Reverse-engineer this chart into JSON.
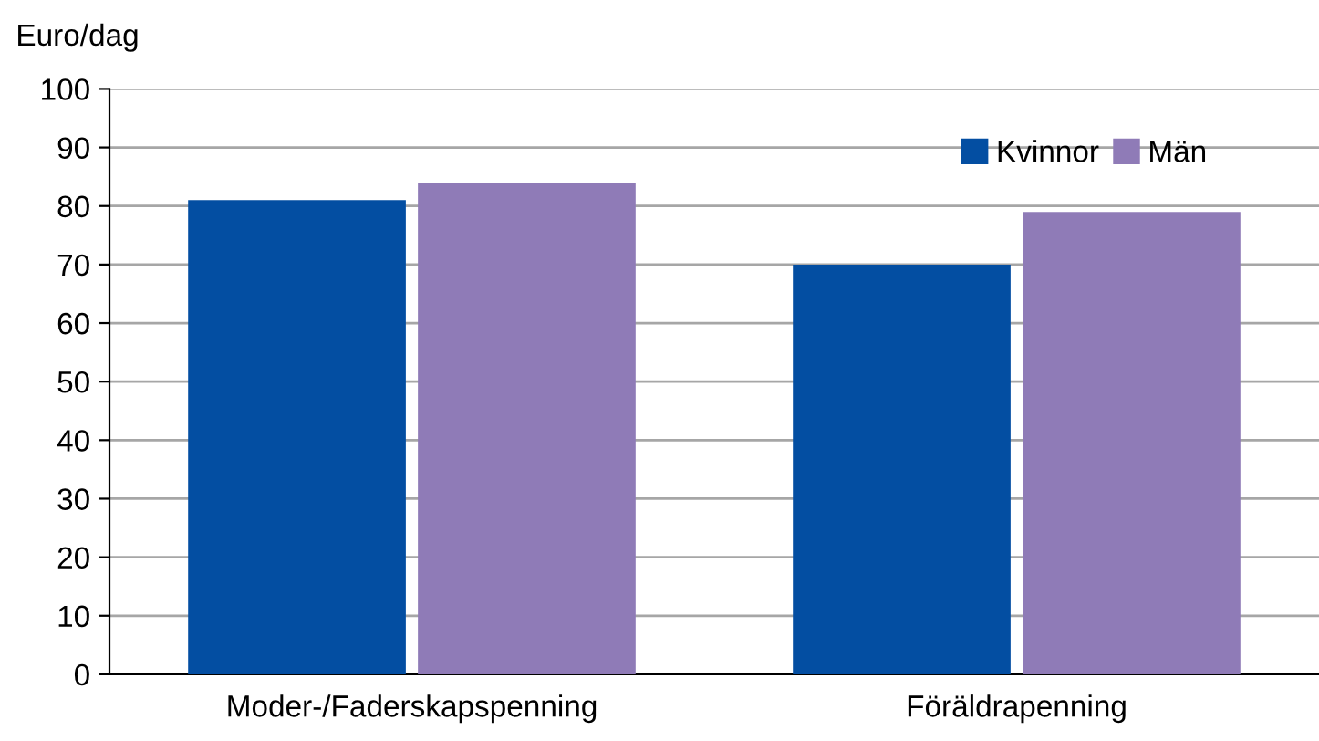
{
  "chart_data": {
    "type": "bar",
    "ylabel": "Euro/dag",
    "categories": [
      "Moder-/Faderskapspenning",
      "Föräldrapenning"
    ],
    "series": [
      {
        "name": "Kvinnor",
        "color": "#034ea2",
        "values": [
          81,
          70
        ]
      },
      {
        "name": "Män",
        "color": "#8f7bb7",
        "values": [
          84,
          79
        ]
      }
    ],
    "ylim": [
      0,
      100
    ],
    "yticks": [
      0,
      10,
      20,
      30,
      40,
      50,
      60,
      70,
      80,
      90,
      100
    ],
    "grid": "y",
    "legend": "top right"
  }
}
